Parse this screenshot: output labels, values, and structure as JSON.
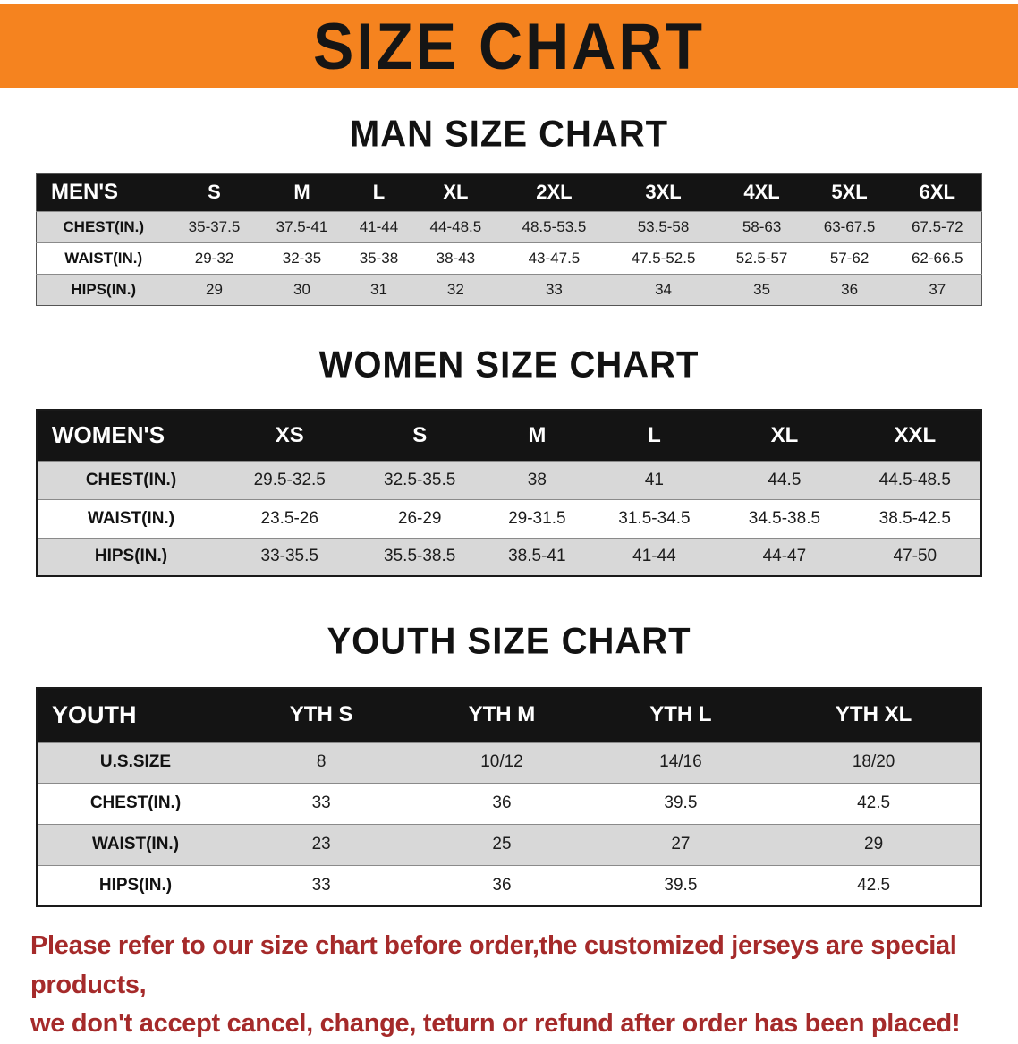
{
  "banner": {
    "title": "SIZE CHART"
  },
  "colors": {
    "banner-bg": "#F5831F",
    "header-bg": "#141414",
    "stripe": "#D8D8D8",
    "disclaimer-color": "#A52A2A"
  },
  "sections": [
    {
      "heading": "MAN SIZE CHART",
      "header_label": "MEN'S",
      "columns": [
        "S",
        "M",
        "L",
        "XL",
        "2XL",
        "3XL",
        "4XL",
        "5XL",
        "6XL"
      ],
      "rows": [
        {
          "label": "CHEST(IN.)",
          "values": [
            "35-37.5",
            "37.5-41",
            "41-44",
            "44-48.5",
            "48.5-53.5",
            "53.5-58",
            "58-63",
            "63-67.5",
            "67.5-72"
          ]
        },
        {
          "label": "WAIST(IN.)",
          "values": [
            "29-32",
            "32-35",
            "35-38",
            "38-43",
            "43-47.5",
            "47.5-52.5",
            "52.5-57",
            "57-62",
            "62-66.5"
          ]
        },
        {
          "label": "HIPS(IN.)",
          "values": [
            "29",
            "30",
            "31",
            "32",
            "33",
            "34",
            "35",
            "36",
            "37"
          ]
        }
      ]
    },
    {
      "heading": "WOMEN SIZE CHART",
      "header_label": "WOMEN'S",
      "columns": [
        "XS",
        "S",
        "M",
        "L",
        "XL",
        "XXL"
      ],
      "rows": [
        {
          "label": "CHEST(IN.)",
          "values": [
            "29.5-32.5",
            "32.5-35.5",
            "38",
            "41",
            "44.5",
            "44.5-48.5"
          ]
        },
        {
          "label": "WAIST(IN.)",
          "values": [
            "23.5-26",
            "26-29",
            "29-31.5",
            "31.5-34.5",
            "34.5-38.5",
            "38.5-42.5"
          ]
        },
        {
          "label": "HIPS(IN.)",
          "values": [
            "33-35.5",
            "35.5-38.5",
            "38.5-41",
            "41-44",
            "44-47",
            "47-50"
          ]
        }
      ]
    },
    {
      "heading": "YOUTH SIZE CHART",
      "header_label": "YOUTH",
      "columns": [
        "YTH S",
        "YTH M",
        "YTH L",
        "YTH XL"
      ],
      "rows": [
        {
          "label": "U.S.SIZE",
          "values": [
            "8",
            "10/12",
            "14/16",
            "18/20"
          ]
        },
        {
          "label": "CHEST(IN.)",
          "values": [
            "33",
            "36",
            "39.5",
            "42.5"
          ]
        },
        {
          "label": "WAIST(IN.)",
          "values": [
            "23",
            "25",
            "27",
            "29"
          ]
        },
        {
          "label": "HIPS(IN.)",
          "values": [
            "33",
            "36",
            "39.5",
            "42.5"
          ]
        }
      ]
    }
  ],
  "disclaimer": {
    "lines": [
      "Please refer to our size chart before order,the customized jerseys are special products,",
      "we don't accept cancel, change, teturn or refund after order has been placed!"
    ]
  }
}
